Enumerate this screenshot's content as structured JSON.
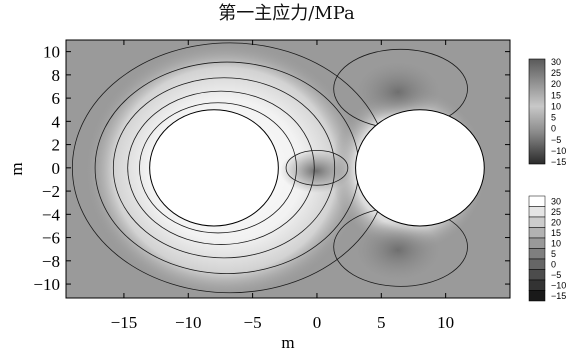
{
  "chart_data": {
    "type": "heatmap",
    "title": "第一主应力/MPa",
    "xlabel": "m",
    "ylabel": "m",
    "xlim": [
      -19.5,
      15
    ],
    "ylim": [
      -11.2,
      11
    ],
    "xticks": [
      -15,
      -10,
      -5,
      0,
      5,
      10
    ],
    "yticks": [
      10,
      8,
      6,
      4,
      2,
      0,
      -2,
      -4,
      -6,
      -8,
      -10
    ],
    "xtick_labels": [
      "−15",
      "−10",
      "−5",
      "0",
      "5",
      "10"
    ],
    "ytick_labels": [
      "10",
      "8",
      "6",
      "4",
      "2",
      "0",
      "−2",
      "−4",
      "−6",
      "−8",
      "−10"
    ],
    "holes": [
      {
        "name": "left",
        "center": [
          -8,
          0
        ],
        "radius": 5
      },
      {
        "name": "right",
        "center": [
          8,
          0
        ],
        "radius": 5
      }
    ],
    "colorbar_gray": {
      "labels": [
        "30",
        "25",
        "20",
        "15",
        "10",
        "5",
        "0",
        "−5",
        "−10",
        "−15"
      ]
    },
    "colorbar_contour": {
      "labels": [
        "30",
        "25",
        "20",
        "15",
        "10",
        "5",
        "0",
        "−5",
        "−10",
        "−15"
      ]
    },
    "grid": false,
    "legend": "right"
  }
}
